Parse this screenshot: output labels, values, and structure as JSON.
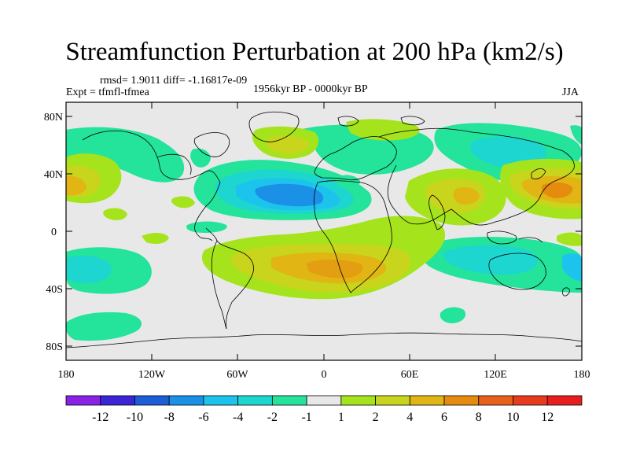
{
  "title": "Streamfunction Perturbation at 200 hPa (km2/s)",
  "stats": "rmsd= 1.9011 diff= -1.16817e-09",
  "experiment": "Expt = tfmfl-tfmea",
  "period": "1956kyr BP - 0000kyr BP",
  "season": "JJA",
  "lat_ticks": [
    "80N",
    "40N",
    "0",
    "40S",
    "80S"
  ],
  "lon_ticks": [
    "180",
    "120W",
    "60W",
    "0",
    "60E",
    "120E",
    "180"
  ],
  "chart_data": {
    "type": "heatmap",
    "projection": "cylindrical-equidistant",
    "lon_range": [
      -180,
      180
    ],
    "lat_range": [
      -90,
      90
    ],
    "colorbar": {
      "levels": [
        "-12",
        "-10",
        "-8",
        "-6",
        "-4",
        "-2",
        "-1",
        "1",
        "2",
        "4",
        "6",
        "8",
        "10",
        "12"
      ],
      "colors": [
        "#8a21e6",
        "#3b25d6",
        "#1c5ed8",
        "#1a91e6",
        "#1cc3ec",
        "#1dd6cf",
        "#24e39a",
        "#e8e8e8",
        "#a5e41c",
        "#c9d41c",
        "#e0b514",
        "#e58c0f",
        "#e8611a",
        "#e83a1d",
        "#e81e1e"
      ]
    }
  }
}
